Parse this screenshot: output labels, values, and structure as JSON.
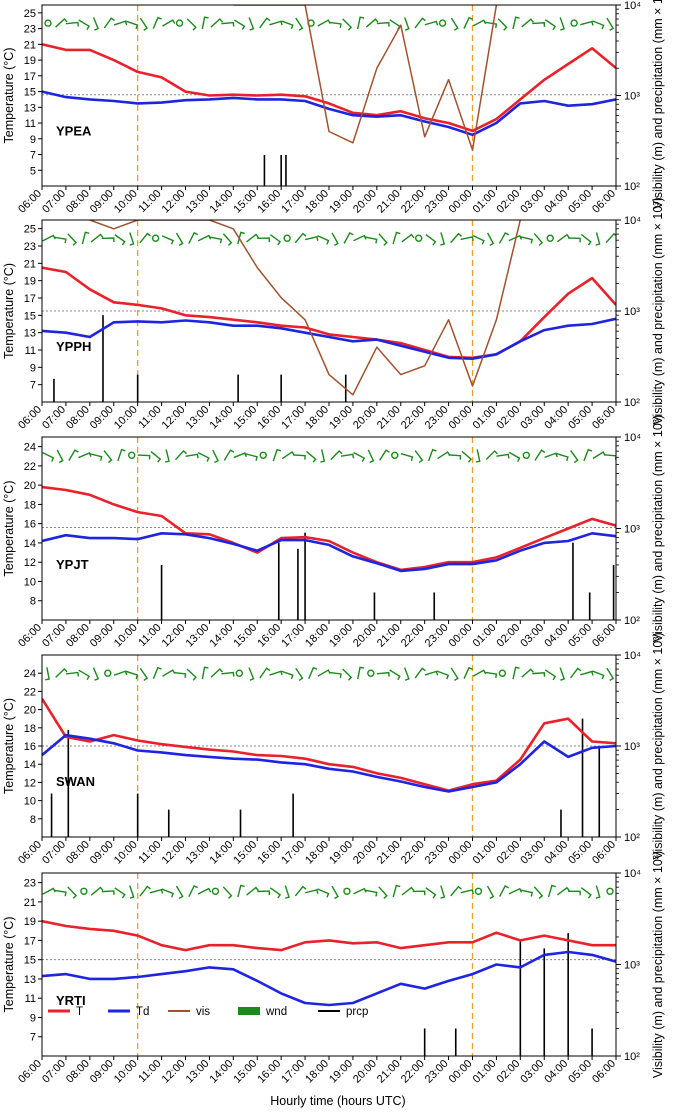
{
  "figure": {
    "xlabel": "Hourly time (hours UTC)",
    "ylabel_left": "Temperature (°C)",
    "ylabel_right": "Visibility (m) and precipitation (mm × 10³)",
    "x_ticks": [
      "06:00",
      "07:00",
      "08:00",
      "09:00",
      "10:00",
      "11:00",
      "12:00",
      "13:00",
      "14:00",
      "15:00",
      "16:00",
      "17:00",
      "18:00",
      "19:00",
      "20:00",
      "21:00",
      "22:00",
      "23:00",
      "00:00",
      "01:00",
      "02:00",
      "03:00",
      "04:00",
      "05:00",
      "06:00"
    ],
    "dashed_vlines_hours": [
      4,
      18
    ],
    "legend": [
      {
        "key": "T",
        "label": "T",
        "color": "#e8212b"
      },
      {
        "key": "Td",
        "label": "Td",
        "color": "#1f24e0"
      },
      {
        "key": "vis",
        "label": "vis",
        "color": "#a0522d"
      },
      {
        "key": "wnd",
        "label": "wnd",
        "color": "#1a8a1a"
      },
      {
        "key": "prcp",
        "label": "prcp",
        "color": "#000000"
      }
    ],
    "colors": {
      "T": "#e8212b",
      "Td": "#1f24e0",
      "vis": "#a0522d",
      "wnd": "#1a8a1a",
      "prcp": "#000000",
      "vline": "#f0a020",
      "hline": "#888888"
    }
  },
  "chart_data": [
    {
      "type": "line",
      "station": "YPEA",
      "ylim_left": [
        3,
        26
      ],
      "yticks_left": [
        5,
        7,
        9,
        11,
        13,
        15,
        17,
        19,
        21,
        23,
        25
      ],
      "ylim_right": [
        100,
        10000
      ],
      "yticks_right": [
        "10²",
        "10³",
        "10⁴"
      ],
      "hline_temp": 14.6,
      "x": [
        0,
        1,
        2,
        3,
        4,
        5,
        6,
        7,
        8,
        9,
        10,
        11,
        12,
        13,
        14,
        15,
        16,
        17,
        18,
        19,
        20,
        21,
        22,
        23,
        24
      ],
      "series": [
        {
          "name": "T",
          "values": [
            21.0,
            20.3,
            20.3,
            19.0,
            17.5,
            16.8,
            15.0,
            14.5,
            14.6,
            14.5,
            14.6,
            14.4,
            13.5,
            12.3,
            12.0,
            12.5,
            11.6,
            11.0,
            10.0,
            11.5,
            14.0,
            16.5,
            18.5,
            20.5,
            18.0
          ]
        },
        {
          "name": "Td",
          "values": [
            15.0,
            14.3,
            14.0,
            13.8,
            13.5,
            13.6,
            13.9,
            14.0,
            14.2,
            14.0,
            14.0,
            13.8,
            12.8,
            12.0,
            11.8,
            12.0,
            11.2,
            10.5,
            9.5,
            11.0,
            13.5,
            13.8,
            13.2,
            13.4,
            14.0
          ]
        },
        {
          "name": "vis",
          "values": [
            null,
            null,
            null,
            null,
            null,
            null,
            null,
            null,
            10000,
            10000,
            10000,
            10000,
            400,
            300,
            2000,
            6000,
            350,
            1500,
            250,
            10000,
            null,
            null,
            null,
            null,
            null
          ]
        }
      ],
      "prcp": [
        {
          "x": 9.3,
          "value": 220
        },
        {
          "x": 10.0,
          "value": 220
        },
        {
          "x": 10.2,
          "value": 220
        }
      ]
    },
    {
      "type": "line",
      "station": "YPPH",
      "ylim_left": [
        5,
        26
      ],
      "yticks_left": [
        7,
        9,
        11,
        13,
        15,
        17,
        19,
        21,
        23,
        25
      ],
      "ylim_right": [
        100,
        10000
      ],
      "yticks_right": [
        "10²",
        "10³",
        "10⁴"
      ],
      "hline_temp": 15.5,
      "x": [
        0,
        1,
        2,
        3,
        4,
        5,
        6,
        7,
        8,
        9,
        10,
        11,
        12,
        13,
        14,
        15,
        16,
        17,
        18,
        19,
        20,
        21,
        22,
        23,
        24
      ],
      "series": [
        {
          "name": "T",
          "values": [
            20.5,
            20.0,
            18.0,
            16.5,
            16.2,
            15.8,
            15.0,
            14.8,
            14.5,
            14.2,
            13.8,
            13.6,
            12.8,
            12.5,
            12.2,
            11.8,
            11.0,
            10.2,
            10.1,
            10.5,
            12.0,
            14.8,
            17.5,
            19.3,
            16.2
          ]
        },
        {
          "name": "Td",
          "values": [
            13.2,
            13.0,
            12.5,
            14.2,
            14.3,
            14.2,
            14.4,
            14.2,
            13.8,
            13.8,
            13.5,
            13.0,
            12.5,
            12.0,
            12.2,
            11.5,
            10.8,
            10.1,
            10.0,
            10.5,
            12.0,
            13.3,
            13.8,
            14.0,
            14.6
          ]
        },
        {
          "name": "vis",
          "values": [
            null,
            null,
            10000,
            8000,
            10000,
            10000,
            10000,
            10000,
            8000,
            3000,
            1400,
            800,
            200,
            120,
            400,
            200,
            250,
            800,
            150,
            800,
            10000,
            null,
            null,
            null,
            null
          ]
        }
      ],
      "prcp": [
        {
          "x": 0.5,
          "value": 180
        },
        {
          "x": 2.55,
          "value": 900
        },
        {
          "x": 4.0,
          "value": 200
        },
        {
          "x": 8.2,
          "value": 200
        },
        {
          "x": 10.0,
          "value": 200
        },
        {
          "x": 12.7,
          "value": 200
        }
      ]
    },
    {
      "type": "line",
      "station": "YPJT",
      "ylim_left": [
        6,
        25
      ],
      "yticks_left": [
        8,
        10,
        12,
        14,
        16,
        18,
        20,
        22,
        24
      ],
      "ylim_right": [
        100,
        10000
      ],
      "yticks_right": [
        "10²",
        "10³",
        "10⁴"
      ],
      "hline_temp": 15.6,
      "x": [
        0,
        1,
        2,
        3,
        4,
        5,
        6,
        7,
        8,
        9,
        10,
        11,
        12,
        13,
        14,
        15,
        16,
        17,
        18,
        19,
        20,
        21,
        22,
        23,
        24
      ],
      "series": [
        {
          "name": "T",
          "values": [
            19.8,
            19.5,
            19.0,
            18.0,
            17.2,
            16.8,
            15.0,
            14.9,
            14.0,
            13.0,
            14.5,
            14.6,
            14.2,
            13.0,
            12.0,
            11.2,
            11.5,
            12.0,
            12.0,
            12.5,
            13.5,
            14.5,
            15.5,
            16.5,
            15.8
          ]
        },
        {
          "name": "Td",
          "values": [
            14.2,
            14.8,
            14.5,
            14.5,
            14.4,
            15.0,
            14.9,
            14.5,
            13.9,
            13.2,
            14.3,
            14.3,
            13.8,
            12.6,
            11.9,
            11.1,
            11.3,
            11.8,
            11.8,
            12.2,
            13.2,
            14.0,
            14.2,
            15.0,
            14.7
          ]
        },
        {
          "name": "vis",
          "values": [
            null,
            null,
            null,
            null,
            null,
            null,
            null,
            null,
            null,
            null,
            null,
            null,
            null,
            null,
            null,
            null,
            null,
            null,
            null,
            null,
            null,
            null,
            null,
            null,
            null
          ]
        }
      ],
      "prcp": [
        {
          "x": 5.0,
          "value": 400
        },
        {
          "x": 9.9,
          "value": 700
        },
        {
          "x": 10.7,
          "value": 600
        },
        {
          "x": 11.0,
          "value": 900
        },
        {
          "x": 13.9,
          "value": 200
        },
        {
          "x": 16.4,
          "value": 200
        },
        {
          "x": 22.2,
          "value": 700
        },
        {
          "x": 22.9,
          "value": 200
        },
        {
          "x": 23.9,
          "value": 400
        }
      ]
    },
    {
      "type": "line",
      "station": "SWAN",
      "ylim_left": [
        6,
        26
      ],
      "yticks_left": [
        8,
        10,
        12,
        14,
        16,
        18,
        20,
        22,
        24
      ],
      "ylim_right": [
        100,
        10000
      ],
      "yticks_right": [
        "10²",
        "10³",
        "10⁴"
      ],
      "hline_temp": 16.0,
      "x": [
        0,
        1,
        2,
        3,
        4,
        5,
        6,
        7,
        8,
        9,
        10,
        11,
        12,
        13,
        14,
        15,
        16,
        17,
        18,
        19,
        20,
        21,
        22,
        23,
        24
      ],
      "series": [
        {
          "name": "T",
          "values": [
            21.2,
            17.0,
            16.5,
            17.2,
            16.6,
            16.2,
            15.9,
            15.6,
            15.4,
            15.0,
            14.9,
            14.6,
            14.0,
            13.7,
            13.0,
            12.5,
            11.8,
            11.1,
            11.8,
            12.2,
            14.5,
            18.5,
            19.0,
            16.5,
            16.3
          ]
        },
        {
          "name": "Td",
          "values": [
            15.0,
            17.2,
            16.8,
            16.3,
            15.5,
            15.3,
            15.0,
            14.8,
            14.6,
            14.5,
            14.2,
            14.0,
            13.5,
            13.2,
            12.6,
            12.1,
            11.5,
            11.0,
            11.5,
            12.0,
            14.0,
            16.5,
            14.8,
            15.8,
            16.0
          ]
        },
        {
          "name": "vis",
          "values": [
            null,
            null,
            null,
            null,
            null,
            null,
            null,
            null,
            null,
            null,
            null,
            null,
            null,
            null,
            null,
            null,
            null,
            null,
            null,
            null,
            null,
            null,
            null,
            null,
            null
          ]
        }
      ],
      "prcp": [
        {
          "x": 0.4,
          "value": 300
        },
        {
          "x": 1.1,
          "value": 1500
        },
        {
          "x": 4.0,
          "value": 300
        },
        {
          "x": 5.3,
          "value": 200
        },
        {
          "x": 8.3,
          "value": 200
        },
        {
          "x": 10.5,
          "value": 300
        },
        {
          "x": 21.7,
          "value": 200
        },
        {
          "x": 22.6,
          "value": 2000
        },
        {
          "x": 23.3,
          "value": 1000
        }
      ]
    },
    {
      "type": "line",
      "station": "YRTI",
      "ylim_left": [
        5,
        24
      ],
      "yticks_left": [
        7,
        9,
        11,
        13,
        15,
        17,
        19,
        21,
        23
      ],
      "ylim_right": [
        100,
        10000
      ],
      "yticks_right": [
        "10²",
        "10³",
        "10⁴"
      ],
      "hline_temp": 15.0,
      "x": [
        0,
        1,
        2,
        3,
        4,
        5,
        6,
        7,
        8,
        9,
        10,
        11,
        12,
        13,
        14,
        15,
        16,
        17,
        18,
        19,
        20,
        21,
        22,
        23,
        24
      ],
      "series": [
        {
          "name": "T",
          "values": [
            19.0,
            18.5,
            18.2,
            18.0,
            17.5,
            16.5,
            16.0,
            16.5,
            16.5,
            16.2,
            16.0,
            16.8,
            17.0,
            16.7,
            16.8,
            16.2,
            16.5,
            16.8,
            16.8,
            17.8,
            17.0,
            17.5,
            17.0,
            16.5,
            16.5
          ]
        },
        {
          "name": "Td",
          "values": [
            13.3,
            13.5,
            13.0,
            13.0,
            13.2,
            13.5,
            13.8,
            14.2,
            14.0,
            12.8,
            11.5,
            10.5,
            10.3,
            10.5,
            11.5,
            12.5,
            12.0,
            12.8,
            13.5,
            14.5,
            14.2,
            15.5,
            15.8,
            15.5,
            14.8
          ]
        },
        {
          "name": "vis",
          "values": [
            null,
            null,
            null,
            null,
            null,
            null,
            null,
            null,
            null,
            null,
            null,
            null,
            null,
            null,
            null,
            null,
            null,
            null,
            null,
            null,
            null,
            null,
            null,
            null,
            null
          ]
        }
      ],
      "prcp": [
        {
          "x": 16.0,
          "value": 200
        },
        {
          "x": 17.3,
          "value": 200
        },
        {
          "x": 20.0,
          "value": 1800
        },
        {
          "x": 21.0,
          "value": 1500
        },
        {
          "x": 22.0,
          "value": 2200
        },
        {
          "x": 23.0,
          "value": 200
        }
      ]
    }
  ]
}
